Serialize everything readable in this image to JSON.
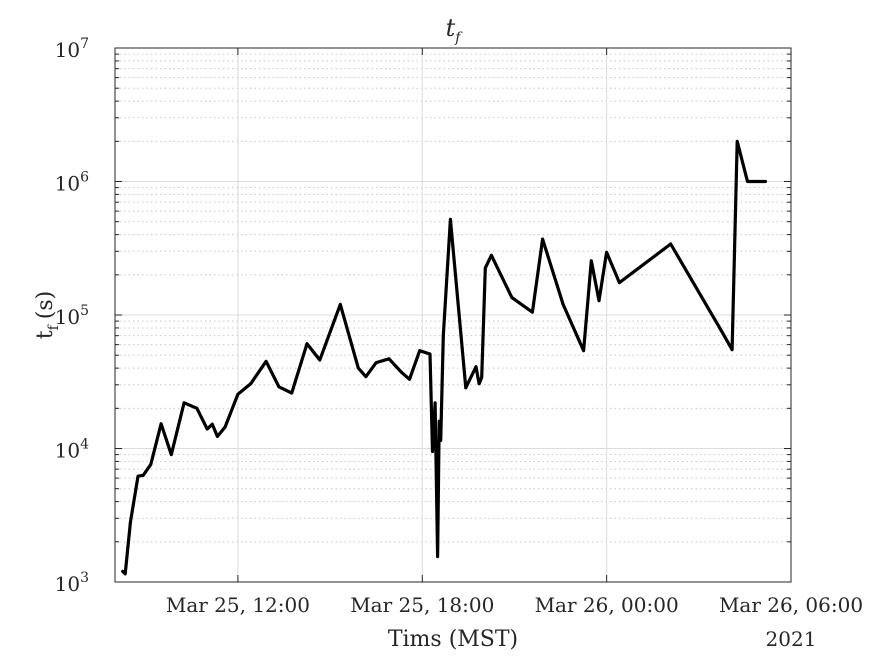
{
  "chart_data": {
    "type": "line",
    "title": "t_f",
    "title_main": "t",
    "title_sub": "f",
    "xlabel": "Tims (MST)",
    "ylabel_main": "t",
    "ylabel_sub": "f",
    "ylabel_unit": "(s)",
    "yscale": "log",
    "ylim": [
      1000,
      10000000
    ],
    "xlim": [
      "2021-03-25T08:00",
      "2021-03-26T06:00"
    ],
    "grid": true,
    "minor_grid": true,
    "x_year_label": "2021",
    "x_ticks": [
      {
        "x": "2021-03-25T12:00",
        "label": "Mar 25, 12:00"
      },
      {
        "x": "2021-03-25T18:00",
        "label": "Mar 25, 18:00"
      },
      {
        "x": "2021-03-26T00:00",
        "label": "Mar 26, 00:00"
      },
      {
        "x": "2021-03-26T06:00",
        "label": "Mar 26, 06:00"
      }
    ],
    "y_ticks": [
      {
        "y": 1000,
        "base": "10",
        "exp": "3"
      },
      {
        "y": 10000,
        "base": "10",
        "exp": "4"
      },
      {
        "y": 100000,
        "base": "10",
        "exp": "5"
      },
      {
        "y": 1000000,
        "base": "10",
        "exp": "6"
      },
      {
        "y": 10000000,
        "base": "10",
        "exp": "7"
      }
    ],
    "series": [
      {
        "color": "#000000",
        "x": [
          "2021-03-25T08:15",
          "2021-03-25T08:20",
          "2021-03-25T08:30",
          "2021-03-25T08:45",
          "2021-03-25T08:55",
          "2021-03-25T09:10",
          "2021-03-25T09:30",
          "2021-03-25T09:50",
          "2021-03-25T10:15",
          "2021-03-25T10:40",
          "2021-03-25T11:00",
          "2021-03-25T11:10",
          "2021-03-25T11:20",
          "2021-03-25T11:35",
          "2021-03-25T12:00",
          "2021-03-25T12:25",
          "2021-03-25T12:55",
          "2021-03-25T13:20",
          "2021-03-25T13:45",
          "2021-03-25T14:15",
          "2021-03-25T14:40",
          "2021-03-25T15:20",
          "2021-03-25T15:55",
          "2021-03-25T16:10",
          "2021-03-25T16:30",
          "2021-03-25T16:55",
          "2021-03-25T17:20",
          "2021-03-25T17:35",
          "2021-03-25T17:55",
          "2021-03-25T18:15",
          "2021-03-25T18:20",
          "2021-03-25T18:25",
          "2021-03-25T18:30",
          "2021-03-25T18:33",
          "2021-03-25T18:36",
          "2021-03-25T18:41",
          "2021-03-25T18:55",
          "2021-03-25T19:25",
          "2021-03-25T19:45",
          "2021-03-25T19:51",
          "2021-03-25T19:56",
          "2021-03-25T20:03",
          "2021-03-25T20:15",
          "2021-03-25T20:55",
          "2021-03-25T21:35",
          "2021-03-25T21:55",
          "2021-03-25T22:35",
          "2021-03-25T23:15",
          "2021-03-25T23:30",
          "2021-03-25T23:45",
          "2021-03-26T00:00",
          "2021-03-26T00:25",
          "2021-03-26T02:05",
          "2021-03-26T03:45",
          "2021-03-26T04:05",
          "2021-03-26T04:15",
          "2021-03-26T04:35",
          "2021-03-26T05:10"
        ],
        "y": [
          1200,
          1150,
          2800,
          6200,
          6300,
          7600,
          15300,
          9000,
          22000,
          20000,
          14000,
          15200,
          12300,
          14500,
          25500,
          30500,
          45000,
          29000,
          26000,
          61000,
          46000,
          120000,
          40000,
          34500,
          44000,
          47000,
          37000,
          33000,
          54000,
          51000,
          9500,
          22000,
          1550,
          16000,
          11500,
          70000,
          520000,
          28500,
          41000,
          30500,
          34000,
          225000,
          280000,
          135000,
          105000,
          370000,
          120000,
          54000,
          255000,
          128000,
          295000,
          175000,
          340000,
          75000,
          55000,
          2000000,
          1000000,
          1000000
        ]
      }
    ]
  }
}
